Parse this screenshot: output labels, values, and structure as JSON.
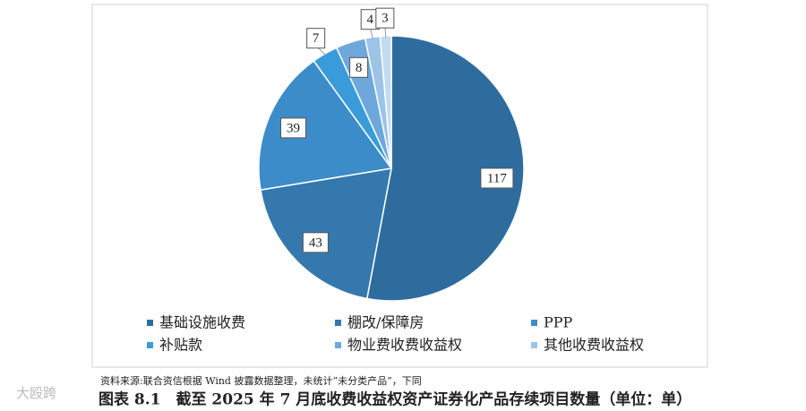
{
  "chart_data": {
    "type": "pie",
    "categories": [
      "基础设施收费",
      "棚改/保障房",
      "PPP",
      "补贴款",
      "物业费收费收益权",
      "其他收费收益权",
      null
    ],
    "values": [
      117,
      43,
      39,
      7,
      8,
      4,
      3
    ],
    "colors": [
      "#2f6c9e",
      "#3478ad",
      "#3c8cc9",
      "#3a9bdb",
      "#6ea8db",
      "#9dc3e7",
      "#c3dbf1"
    ],
    "source": "资料来源:联合资信根据 Wind 披露数据整理，未统计“未分类产品”，下同",
    "caption": "图表 8.1　截至 2025 年 7 月底收费收益权资产证券化产品存续项目数量（单位：单）",
    "watermark": "大殴跨"
  }
}
